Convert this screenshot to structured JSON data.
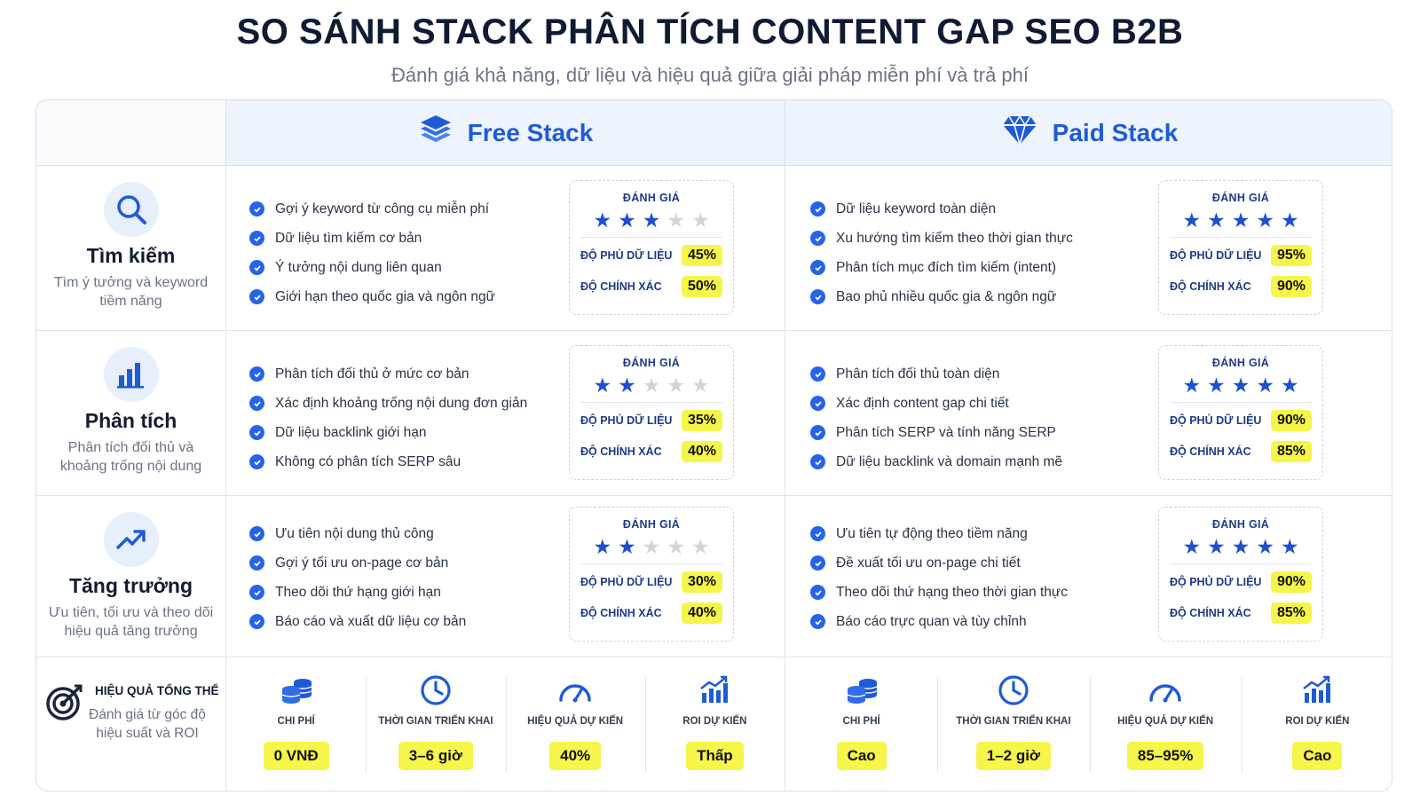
{
  "title": "SO SÁNH STACK PHÂN TÍCH CONTENT GAP SEO B2B",
  "subtitle": "Đánh giá khả năng, dữ liệu và hiệu quả giữa giải pháp miễn phí và trả phí",
  "colors": {
    "accent": "#2563eb",
    "star_on": "#1e4fd0",
    "star_off": "#d1d5db",
    "highlight": "#f5f54a"
  },
  "columns": {
    "free": {
      "label": "Free Stack",
      "icon": "layers-icon"
    },
    "paid": {
      "label": "Paid Stack",
      "icon": "diamond-icon"
    }
  },
  "rating_label": "ĐÁNH GIÁ",
  "metric_labels": {
    "coverage": "ĐỘ PHỦ DỮ LIỆU",
    "accuracy": "ĐỘ CHÍNH XÁC"
  },
  "rows": [
    {
      "icon": "search-icon",
      "title": "Tìm kiếm",
      "desc": "Tìm ý tưởng và keyword tiềm năng",
      "free": {
        "features": [
          "Gợi ý keyword từ công cụ miễn phí",
          "Dữ liệu tìm kiếm cơ bản",
          "Ý tưởng nội dung liên quan",
          "Giới hạn theo quốc gia và ngôn ngữ"
        ],
        "stars": 3,
        "coverage": "45%",
        "accuracy": "50%"
      },
      "paid": {
        "features": [
          "Dữ liệu keyword toàn diện",
          "Xu hướng tìm kiếm theo thời gian thực",
          "Phân tích mục đích tìm kiếm (intent)",
          "Bao phủ nhiều quốc gia & ngôn ngữ"
        ],
        "stars": 5,
        "coverage": "95%",
        "accuracy": "90%"
      }
    },
    {
      "icon": "bar-chart-icon",
      "title": "Phân tích",
      "desc": "Phân tích đối thủ và khoảng trống nội dung",
      "free": {
        "features": [
          "Phân tích đối thủ ở mức cơ bản",
          "Xác định khoảng trống nội dung đơn giản",
          "Dữ liệu backlink giới hạn",
          "Không có phân tích SERP sâu"
        ],
        "stars": 2,
        "coverage": "35%",
        "accuracy": "40%"
      },
      "paid": {
        "features": [
          "Phân tích đối thủ toàn diện",
          "Xác định content gap chi tiết",
          "Phân tích SERP và tính năng SERP",
          "Dữ liệu backlink và domain mạnh mẽ"
        ],
        "stars": 5,
        "coverage": "90%",
        "accuracy": "85%"
      }
    },
    {
      "icon": "trending-up-icon",
      "title": "Tăng trưởng",
      "desc": "Ưu tiên, tối ưu và theo dõi hiệu quả tăng trưởng",
      "free": {
        "features": [
          "Ưu tiên nội dung thủ công",
          "Gợi ý tối ưu on-page cơ bản",
          "Theo dõi thứ hạng giới hạn",
          "Báo cáo và xuất dữ liệu cơ bản"
        ],
        "stars": 2,
        "coverage": "30%",
        "accuracy": "40%"
      },
      "paid": {
        "features": [
          "Ưu tiên tự động theo tiềm năng",
          "Đề xuất tối ưu on-page chi tiết",
          "Theo dõi thứ hạng theo thời gian thực",
          "Báo cáo trực quan và tùy chỉnh"
        ],
        "stars": 5,
        "coverage": "90%",
        "accuracy": "85%"
      }
    }
  ],
  "effectiveness": {
    "title": "HIỆU QUẢ TỔNG THỂ",
    "desc": "Đánh giá từ góc độ hiệu suất và ROI",
    "icon": "target-icon",
    "items": [
      {
        "label": "CHI PHÍ",
        "icon": "coins-icon"
      },
      {
        "label": "THỜI GIAN TRIỂN KHAI",
        "icon": "clock-icon"
      },
      {
        "label": "HIỆU QUẢ DỰ KIẾN",
        "icon": "gauge-icon"
      },
      {
        "label": "ROI DỰ KIẾN",
        "icon": "growth-chart-icon"
      }
    ],
    "free_values": [
      "0 VNĐ",
      "3–6 giờ",
      "40%",
      "Thấp"
    ],
    "paid_values": [
      "Cao",
      "1–2 giờ",
      "85–95%",
      "Cao"
    ]
  }
}
